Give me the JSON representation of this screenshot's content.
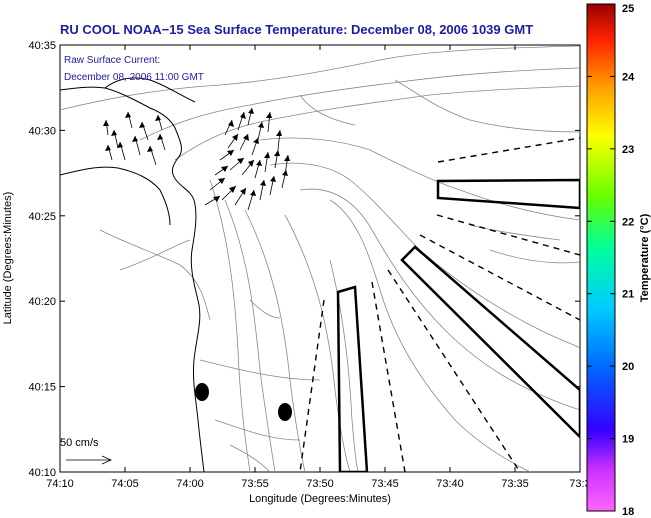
{
  "title": "RU COOL  NOAA−15  Sea Surface Temperature:  December 08, 2006 1039 GMT",
  "current_label": "Raw Surface Current:",
  "current_time": "December 08, 2006 11:00 GMT",
  "scale_label": "50 cm/s",
  "xlabel": "Longitude (Degrees:Minutes)",
  "ylabel": "Latitude (Degrees:Minutes)",
  "colorbar_label": "Temperature (°C)",
  "x_ticks": [
    "74:10",
    "74:05",
    "74:00",
    "73:55",
    "73:50",
    "73:45",
    "73:40",
    "73:35",
    "73:3"
  ],
  "y_ticks": [
    "40:35",
    "40:30",
    "40:25",
    "40:20",
    "40:15",
    "40:10"
  ],
  "colorbar_ticks": [
    "25",
    "24",
    "23",
    "22",
    "21",
    "20",
    "19",
    "18"
  ],
  "colorbar_range": [
    18,
    25
  ],
  "colors": {
    "title": "#1c1ca8",
    "contour": "#888888",
    "coast": "#000000"
  }
}
